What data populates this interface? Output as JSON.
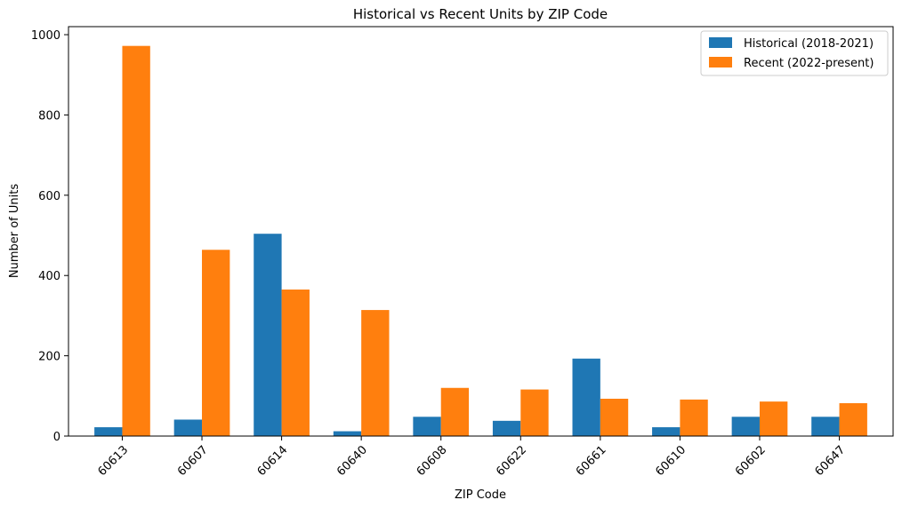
{
  "chart_data": {
    "type": "bar",
    "title": "Historical vs Recent Units by ZIP Code",
    "xlabel": "ZIP Code",
    "ylabel": "Number of Units",
    "categories": [
      "60613",
      "60607",
      "60614",
      "60640",
      "60608",
      "60622",
      "60661",
      "60610",
      "60602",
      "60647"
    ],
    "series": [
      {
        "name": "Historical (2018-2021)",
        "color": "#1f77b4",
        "values": [
          22,
          41,
          504,
          12,
          48,
          38,
          193,
          22,
          48,
          48
        ]
      },
      {
        "name": "Recent (2022-present)",
        "color": "#ff7f0e",
        "values": [
          972,
          464,
          365,
          314,
          120,
          116,
          93,
          91,
          86,
          82
        ]
      }
    ],
    "yticks": [
      0,
      200,
      400,
      600,
      800,
      1000
    ],
    "ylim": [
      0,
      1020
    ],
    "grid": false,
    "legend_position": "top-right",
    "x_tick_rotation": 45
  }
}
